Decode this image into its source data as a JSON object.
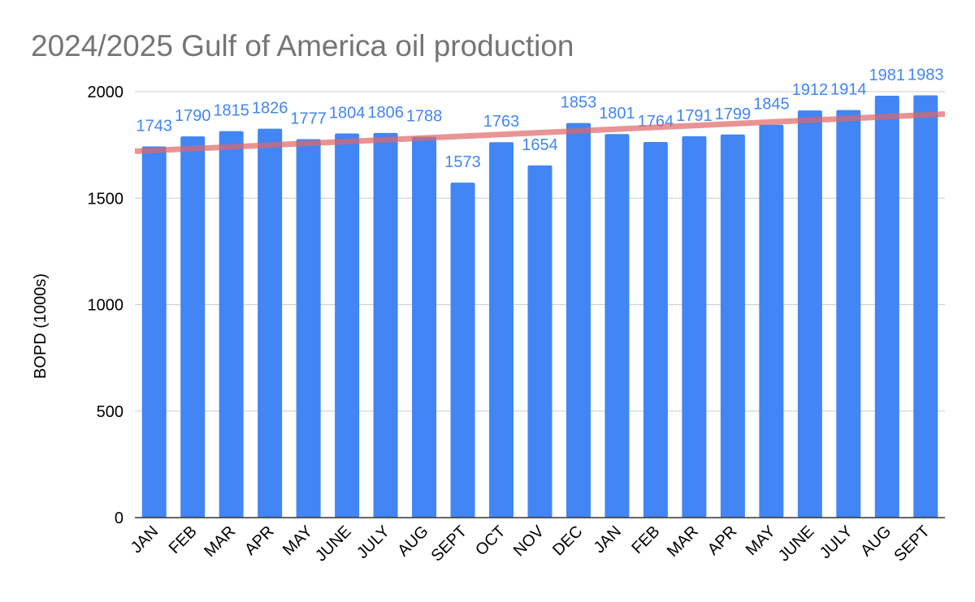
{
  "chart_data": {
    "type": "bar",
    "title": "2024/2025 Gulf of America oil production",
    "xlabel": "",
    "ylabel": "BOPD (1000s)",
    "ylim": [
      0,
      2000
    ],
    "yticks": [
      "0",
      "500",
      "1000",
      "1500",
      "2000"
    ],
    "categories": [
      "JAN",
      "FEB",
      "MAR",
      "APR",
      "MAY",
      "JUNE",
      "JULY",
      "AUG",
      "SEPT",
      "OCT",
      "NOV",
      "DEC",
      "JAN",
      "FEB",
      "MAR",
      "APR",
      "MAY",
      "JUNE",
      "JULY",
      "AUG",
      "SEPT"
    ],
    "series": [
      {
        "values": [
          1743,
          1790,
          1815,
          1826,
          1777,
          1804,
          1806,
          1788,
          1573,
          1763,
          1654,
          1853,
          1801,
          1764,
          1791,
          1799,
          1845,
          1912,
          1914,
          1981,
          1983
        ],
        "labels": [
          "1743",
          "1790",
          "1815",
          "1826",
          "1777",
          "1804",
          "1806",
          "1788",
          "1573",
          "1763",
          "1654",
          "1853",
          "1801",
          "1764",
          "1791",
          "1799",
          "1845",
          "1912",
          "1914",
          "1981",
          "1983"
        ]
      }
    ],
    "trendline": {
      "type": "linear",
      "start": 1720,
      "end": 1895
    },
    "grid": true,
    "legend": "none",
    "colors": {
      "bar": "#4285f4",
      "data_label": "#4285f4",
      "trendline": "#e06666",
      "title": "#757575",
      "grid": "#cccccc",
      "axis": "#333333"
    }
  }
}
